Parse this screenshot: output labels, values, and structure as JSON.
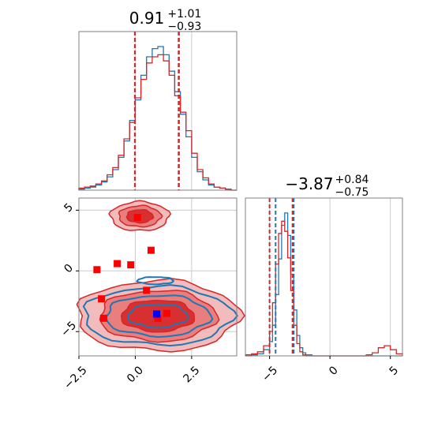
{
  "colors": {
    "series_a": "#1f77b4",
    "series_b": "#d62728",
    "marker_red": "#ff0000",
    "marker_blue": "#0000ff",
    "fill_b_light": "#f2b5b5",
    "fill_b_mid": "#e77777",
    "grid": "#cccccc",
    "frame": "#808080"
  },
  "chart_data": [
    {
      "type": "histogram",
      "panel": "top-left marginal",
      "title": {
        "value": "0.91",
        "plus": "+1.01",
        "minus": "−0.93"
      },
      "xlim": [
        -2.5,
        4.5
      ],
      "grid": true,
      "quantile_lines": {
        "series_a": [
          -0.02,
          1.92
        ],
        "series_b": [
          -0.01,
          1.94
        ]
      },
      "bin_edges": [
        -2.5,
        -2.25,
        -2.0,
        -1.75,
        -1.5,
        -1.25,
        -1.0,
        -0.75,
        -0.5,
        -0.25,
        0.0,
        0.25,
        0.5,
        0.75,
        1.0,
        1.25,
        1.5,
        1.75,
        2.0,
        2.25,
        2.5,
        2.75,
        3.0,
        3.25,
        3.5,
        3.75,
        4.0,
        4.25,
        4.5
      ],
      "series": [
        {
          "color_key": "series_a",
          "counts": [
            1,
            2,
            3,
            5,
            8,
            13,
            20,
            32,
            48,
            68,
            88,
            112,
            130,
            138,
            140,
            132,
            116,
            96,
            74,
            52,
            32,
            18,
            10,
            5,
            3,
            2,
            1,
            0
          ]
        },
        {
          "color_key": "series_b",
          "counts": [
            2,
            3,
            4,
            6,
            9,
            15,
            22,
            34,
            50,
            66,
            90,
            108,
            124,
            130,
            132,
            126,
            112,
            92,
            76,
            58,
            36,
            20,
            12,
            6,
            3,
            2,
            1,
            0
          ]
        }
      ]
    },
    {
      "type": "contour",
      "panel": "bottom-left 2D",
      "xlim": [
        -2.5,
        4.5
      ],
      "ylim": [
        -7,
        6
      ],
      "x_ticks": [
        "−2.5",
        "0.0",
        "2.5"
      ],
      "y_ticks": [
        "−5",
        "0",
        "5"
      ],
      "grid": true,
      "series_b_regions": [
        {
          "center": [
            0.2,
            4.5
          ],
          "radius": [
            1.3,
            1.2
          ]
        },
        {
          "center": [
            1.0,
            -3.7
          ],
          "radius": [
            3.6,
            2.9
          ]
        }
      ],
      "series_a_regions": [
        {
          "center": [
            1.0,
            -3.7
          ],
          "radius": [
            3.3,
            2.4
          ]
        },
        {
          "center": [
            0.9,
            -0.8
          ],
          "radius": [
            0.8,
            0.3
          ]
        }
      ],
      "points_red": [
        [
          -1.7,
          0.1
        ],
        [
          -0.8,
          0.6
        ],
        [
          -0.2,
          0.5
        ],
        [
          0.7,
          1.7
        ],
        [
          0.5,
          -1.6
        ],
        [
          -1.5,
          -2.3
        ],
        [
          -1.4,
          -3.9
        ],
        [
          0.1,
          4.4
        ],
        [
          1.4,
          -3.5
        ],
        [
          1.0,
          -3.9
        ]
      ],
      "point_blue": [
        0.95,
        -3.55
      ]
    },
    {
      "type": "histogram",
      "panel": "bottom-right marginal",
      "title": {
        "value": "−3.87",
        "plus": "+0.84",
        "minus": "−0.75"
      },
      "xlim": [
        -7,
        6
      ],
      "x_ticks": [
        "−5",
        "0",
        "5"
      ],
      "grid": true,
      "quantile_lines": {
        "series_a": [
          -4.5,
          -3.0
        ],
        "series_b": [
          -5.0,
          -3.1
        ]
      },
      "bin_edges": [
        -7,
        -6.5,
        -6.0,
        -5.5,
        -5.0,
        -4.75,
        -4.5,
        -4.25,
        -4.0,
        -3.75,
        -3.5,
        -3.25,
        -3.0,
        -2.75,
        -2.5,
        -2.25,
        -2.0,
        -1.5,
        -1.0,
        0,
        1,
        2,
        3,
        3.5,
        4.0,
        4.5,
        5.0,
        5.5,
        6.0
      ],
      "series": [
        {
          "color_key": "series_a",
          "counts": [
            0,
            1,
            2,
            6,
            14,
            30,
            60,
            95,
            128,
            140,
            118,
            80,
            45,
            20,
            8,
            3,
            1,
            0,
            0,
            0,
            0,
            0,
            0,
            0,
            0,
            0,
            0,
            0
          ]
        },
        {
          "color_key": "series_b",
          "counts": [
            1,
            2,
            4,
            10,
            24,
            52,
            90,
            120,
            132,
            122,
            96,
            64,
            30,
            12,
            4,
            1,
            0,
            0,
            0,
            0,
            0,
            0,
            1,
            3,
            8,
            10,
            6,
            2
          ]
        }
      ]
    }
  ]
}
